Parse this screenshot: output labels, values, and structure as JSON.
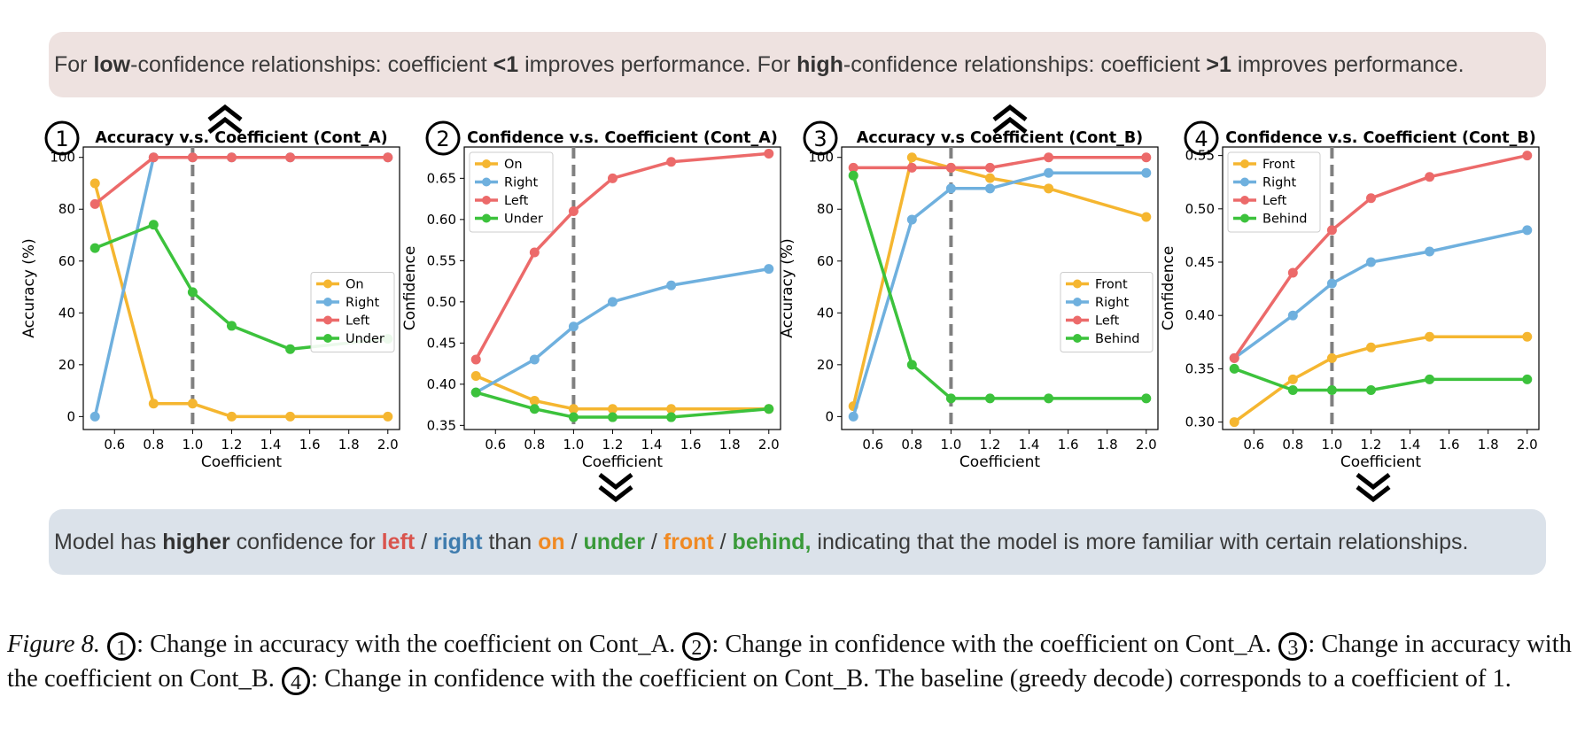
{
  "banner_top": {
    "p1": "For ",
    "b1": "low",
    "p2": "-confidence relationships: coefficient ",
    "b2": "<1",
    "p3": " improves performance. For ",
    "b3": "high",
    "p4": "-confidence relationships: coefficient ",
    "b4": ">1",
    "p5": " improves performance."
  },
  "banner_bottom": {
    "p1": "Model has ",
    "b1": "higher",
    "p2": " confidence for ",
    "left": "left",
    "s1": " / ",
    "right": "right",
    "p3": " than ",
    "on": "on",
    "s2": " / ",
    "under": "under",
    "s3": " / ",
    "front": "front",
    "s4": " / ",
    "behind": "behind,",
    "p4": " indicating that the model is more familiar with certain relationships."
  },
  "colors": {
    "yellow": "#f5b630",
    "blue": "#6fb0de",
    "red": "#ec6a6a",
    "green": "#3cc23c",
    "baseline": "#808080"
  },
  "chart_data": [
    {
      "type": "line",
      "badge": "1",
      "title": "Accuracy v.s. Coefficient (Cont_A)",
      "xlabel": "Coefficient",
      "ylabel": "Accuracy (%)",
      "x": [
        0.5,
        0.8,
        1.0,
        1.2,
        1.5,
        2.0
      ],
      "xlim": [
        0.44,
        2.06
      ],
      "ylim": [
        -5,
        104
      ],
      "xticks": [
        "0.6",
        "0.8",
        "1.0",
        "1.2",
        "1.4",
        "1.6",
        "1.8",
        "2.0"
      ],
      "yticks": [
        "0",
        "20",
        "40",
        "60",
        "80",
        "100"
      ],
      "baseline": 1.0,
      "legend_position": "center-right",
      "series": [
        {
          "name": "On",
          "color": "yellow",
          "values": [
            90,
            5,
            5,
            0,
            0,
            0
          ]
        },
        {
          "name": "Right",
          "color": "blue",
          "values": [
            0,
            100,
            100,
            100,
            100,
            100
          ]
        },
        {
          "name": "Left",
          "color": "red",
          "values": [
            82,
            100,
            100,
            100,
            100,
            100
          ]
        },
        {
          "name": "Under",
          "color": "green",
          "values": [
            65,
            74,
            48,
            35,
            26,
            30
          ]
        }
      ]
    },
    {
      "type": "line",
      "badge": "2",
      "title": "Confidence v.s. Coefficient (Cont_A)",
      "xlabel": "Coefficient",
      "ylabel": "Confidence",
      "x": [
        0.5,
        0.8,
        1.0,
        1.2,
        1.5,
        2.0
      ],
      "xlim": [
        0.44,
        2.06
      ],
      "ylim": [
        0.345,
        0.688
      ],
      "xticks": [
        "0.6",
        "0.8",
        "1.0",
        "1.2",
        "1.4",
        "1.6",
        "1.8",
        "2.0"
      ],
      "yticks": [
        "0.35",
        "0.40",
        "0.45",
        "0.50",
        "0.55",
        "0.60",
        "0.65"
      ],
      "baseline": 1.0,
      "legend_position": "top-left",
      "series": [
        {
          "name": "On",
          "color": "yellow",
          "values": [
            0.41,
            0.38,
            0.37,
            0.37,
            0.37,
            0.37
          ]
        },
        {
          "name": "Right",
          "color": "blue",
          "values": [
            0.39,
            0.43,
            0.47,
            0.5,
            0.52,
            0.54
          ]
        },
        {
          "name": "Left",
          "color": "red",
          "values": [
            0.43,
            0.56,
            0.61,
            0.65,
            0.67,
            0.68
          ]
        },
        {
          "name": "Under",
          "color": "green",
          "values": [
            0.39,
            0.37,
            0.36,
            0.36,
            0.36,
            0.37
          ]
        }
      ]
    },
    {
      "type": "line",
      "badge": "3",
      "title": "Accuracy v.s Coefficient (Cont_B)",
      "xlabel": "Coefficient",
      "ylabel": "Accuracy (%)",
      "x": [
        0.5,
        0.8,
        1.0,
        1.2,
        1.5,
        2.0
      ],
      "xlim": [
        0.44,
        2.06
      ],
      "ylim": [
        -5,
        104
      ],
      "xticks": [
        "0.6",
        "0.8",
        "1.0",
        "1.2",
        "1.4",
        "1.6",
        "1.8",
        "2.0"
      ],
      "yticks": [
        "0",
        "20",
        "40",
        "60",
        "80",
        "100"
      ],
      "baseline": 1.0,
      "legend_position": "center-right",
      "series": [
        {
          "name": "Front",
          "color": "yellow",
          "values": [
            4,
            100,
            96,
            92,
            88,
            77
          ]
        },
        {
          "name": "Right",
          "color": "blue",
          "values": [
            0,
            76,
            88,
            88,
            94,
            94
          ]
        },
        {
          "name": "Left",
          "color": "red",
          "values": [
            96,
            96,
            96,
            96,
            100,
            100
          ]
        },
        {
          "name": "Behind",
          "color": "green",
          "values": [
            93,
            20,
            7,
            7,
            7,
            7
          ]
        }
      ]
    },
    {
      "type": "line",
      "badge": "4",
      "title": "Confidence v.s. Coefficient (Cont_B)",
      "xlabel": "Coefficient",
      "ylabel": "Confidence",
      "x": [
        0.5,
        0.8,
        1.0,
        1.2,
        1.5,
        2.0
      ],
      "xlim": [
        0.44,
        2.06
      ],
      "ylim": [
        0.293,
        0.558
      ],
      "xticks": [
        "0.6",
        "0.8",
        "1.0",
        "1.2",
        "1.4",
        "1.6",
        "1.8",
        "2.0"
      ],
      "yticks": [
        "0.30",
        "0.35",
        "0.40",
        "0.45",
        "0.50",
        "0.55"
      ],
      "baseline": 1.0,
      "legend_position": "top-left",
      "series": [
        {
          "name": "Front",
          "color": "yellow",
          "values": [
            0.3,
            0.34,
            0.36,
            0.37,
            0.38,
            0.38
          ]
        },
        {
          "name": "Right",
          "color": "blue",
          "values": [
            0.36,
            0.4,
            0.43,
            0.45,
            0.46,
            0.48
          ]
        },
        {
          "name": "Left",
          "color": "red",
          "values": [
            0.36,
            0.44,
            0.48,
            0.51,
            0.53,
            0.55
          ]
        },
        {
          "name": "Behind",
          "color": "green",
          "values": [
            0.35,
            0.33,
            0.33,
            0.33,
            0.34,
            0.34
          ]
        }
      ]
    }
  ],
  "caption": {
    "lead": "Figure 8.",
    "b1": "1",
    "t1": ": Change in accuracy with the coefficient on Cont_A.",
    "b2": "2",
    "t2": ": Change in confidence with the coefficient on Cont_A.",
    "b3": "3",
    "t3": ": Change in accuracy with the coefficient on Cont_B.",
    "b4": "4",
    "t4": ": Change in confidence with the coefficient on Cont_B. The baseline (greedy decode) corresponds to a coefficient of 1."
  }
}
